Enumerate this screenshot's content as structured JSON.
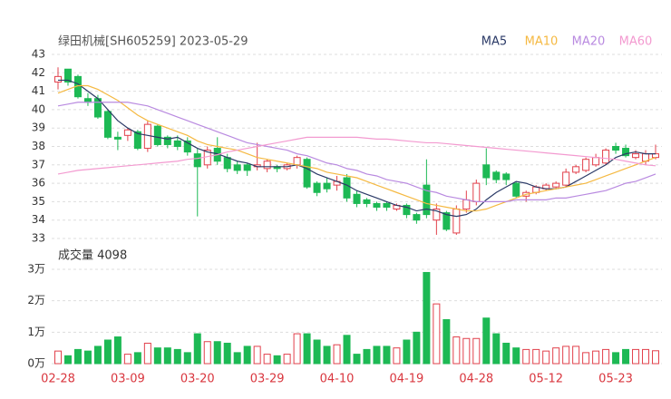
{
  "chart_data": [
    {
      "type": "candlestick",
      "title": "绿田机械[SH605259] 2023-05-29",
      "categories": [
        "02-28",
        null,
        null,
        null,
        null,
        null,
        null,
        "03-09",
        null,
        null,
        null,
        null,
        null,
        null,
        "03-20",
        null,
        null,
        null,
        null,
        null,
        null,
        "03-29",
        null,
        null,
        null,
        null,
        null,
        null,
        "04-10",
        null,
        null,
        null,
        null,
        null,
        null,
        "04-19",
        null,
        null,
        null,
        null,
        null,
        null,
        "04-28",
        null,
        null,
        null,
        null,
        null,
        null,
        "05-12",
        null,
        null,
        null,
        null,
        null,
        null,
        "05-23",
        null,
        null,
        null,
        null
      ],
      "open": [
        41.5,
        42.2,
        41.8,
        40.6,
        40.6,
        39.9,
        38.5,
        38.6,
        38.8,
        37.9,
        39.1,
        38.5,
        38.3,
        38.3,
        37.6,
        37.0,
        37.9,
        37.4,
        37.0,
        37.0,
        36.9,
        36.8,
        36.9,
        36.8,
        37.0,
        37.3,
        36.0,
        36.0,
        35.9,
        36.3,
        35.4,
        35.1,
        34.9,
        34.9,
        34.6,
        34.8,
        34.3,
        35.9,
        34.0,
        34.4,
        33.3,
        34.6,
        35.0,
        37.0,
        36.6,
        36.5,
        36.0,
        35.3,
        35.5,
        35.7,
        35.8,
        35.9,
        36.6,
        36.7,
        37.0,
        37.1,
        38.0,
        37.9,
        37.4,
        37.2,
        37.4
      ],
      "high": [
        42.3,
        42.2,
        41.9,
        40.9,
        40.8,
        40.0,
        38.8,
        39.0,
        38.9,
        39.4,
        39.2,
        38.6,
        38.6,
        38.5,
        37.9,
        38.0,
        38.5,
        37.6,
        37.2,
        37.1,
        38.2,
        37.3,
        37.0,
        37.1,
        37.5,
        37.4,
        36.1,
        36.3,
        36.4,
        36.5,
        35.6,
        35.2,
        35.0,
        35.0,
        34.9,
        34.9,
        34.4,
        37.3,
        34.9,
        34.5,
        34.8,
        35.6,
        36.2,
        37.9,
        36.7,
        36.6,
        36.1,
        35.6,
        35.9,
        36.0,
        36.1,
        36.8,
        37.0,
        37.4,
        37.6,
        37.9,
        38.2,
        38.1,
        37.8,
        37.8,
        38.1
      ],
      "low": [
        41.1,
        41.3,
        40.6,
        40.2,
        39.5,
        38.4,
        37.8,
        38.3,
        37.8,
        37.7,
        38.0,
        37.9,
        37.8,
        37.5,
        34.2,
        36.8,
        37.0,
        36.6,
        36.5,
        36.4,
        36.7,
        36.6,
        36.6,
        36.7,
        36.8,
        35.7,
        35.3,
        35.5,
        35.6,
        35.0,
        34.7,
        34.7,
        34.5,
        34.5,
        34.5,
        34.1,
        33.8,
        34.1,
        33.2,
        33.4,
        33.2,
        34.4,
        34.8,
        35.9,
        36.0,
        35.9,
        35.2,
        35.0,
        35.4,
        35.6,
        35.7,
        35.8,
        36.5,
        36.6,
        36.9,
        37.0,
        37.6,
        37.4,
        37.3,
        37.0,
        37.3
      ],
      "close": [
        41.8,
        41.5,
        40.7,
        40.4,
        39.6,
        38.5,
        38.4,
        38.9,
        37.9,
        39.2,
        38.1,
        38.1,
        38.0,
        37.7,
        36.9,
        37.8,
        37.2,
        36.8,
        36.7,
        36.7,
        37.0,
        37.2,
        36.8,
        37.0,
        37.4,
        35.8,
        35.5,
        35.7,
        36.1,
        35.2,
        34.9,
        34.9,
        34.7,
        34.7,
        34.8,
        34.3,
        34.0,
        34.3,
        34.6,
        33.5,
        34.6,
        35.1,
        36.0,
        36.3,
        36.2,
        36.2,
        35.3,
        35.5,
        35.8,
        35.9,
        36.0,
        36.6,
        36.9,
        37.3,
        37.4,
        37.8,
        37.8,
        37.5,
        37.6,
        37.6,
        37.6
      ],
      "series": [
        {
          "name": "MA5",
          "color": "#2b3a67",
          "values": [
            41.6,
            41.6,
            41.4,
            41.0,
            40.6,
            40.0,
            39.4,
            39.0,
            38.7,
            38.6,
            38.5,
            38.4,
            38.5,
            38.2,
            37.9,
            37.7,
            37.6,
            37.4,
            37.2,
            37.1,
            36.9,
            36.9,
            36.9,
            36.9,
            37.0,
            36.8,
            36.5,
            36.3,
            36.1,
            35.9,
            35.6,
            35.4,
            35.2,
            35.0,
            34.8,
            34.7,
            34.5,
            34.6,
            34.5,
            34.3,
            34.2,
            34.3,
            34.6,
            35.1,
            35.5,
            35.8,
            36.1,
            36.0,
            35.8,
            35.7,
            35.7,
            35.8,
            36.1,
            36.4,
            36.7,
            37.0,
            37.4,
            37.6,
            37.7,
            37.6,
            37.6
          ]
        },
        {
          "name": "MA10",
          "color": "#f5b942",
          "values": [
            40.9,
            41.1,
            41.3,
            41.3,
            41.1,
            40.8,
            40.5,
            40.1,
            39.7,
            39.4,
            39.2,
            39.0,
            38.8,
            38.6,
            38.3,
            38.1,
            38.0,
            37.9,
            37.8,
            37.6,
            37.4,
            37.3,
            37.2,
            37.1,
            37.0,
            36.9,
            36.8,
            36.6,
            36.5,
            36.4,
            36.3,
            36.1,
            35.9,
            35.7,
            35.5,
            35.3,
            35.1,
            34.9,
            34.8,
            34.7,
            34.6,
            34.5,
            34.5,
            34.6,
            34.8,
            35.0,
            35.2,
            35.4,
            35.5,
            35.6,
            35.7,
            35.8,
            35.9,
            36.0,
            36.2,
            36.4,
            36.6,
            36.8,
            37.0,
            37.2,
            37.4
          ]
        },
        {
          "name": "MA20",
          "color": "#b98ae0",
          "values": [
            40.2,
            40.3,
            40.4,
            40.4,
            40.4,
            40.4,
            40.4,
            40.4,
            40.3,
            40.2,
            40.0,
            39.8,
            39.6,
            39.4,
            39.2,
            39.0,
            38.8,
            38.6,
            38.4,
            38.2,
            38.1,
            38.0,
            37.9,
            37.8,
            37.6,
            37.5,
            37.3,
            37.1,
            37.0,
            36.8,
            36.7,
            36.5,
            36.4,
            36.2,
            36.1,
            36.0,
            35.8,
            35.6,
            35.5,
            35.3,
            35.2,
            35.1,
            35.0,
            35.0,
            35.0,
            35.0,
            35.1,
            35.1,
            35.1,
            35.1,
            35.2,
            35.2,
            35.3,
            35.4,
            35.5,
            35.6,
            35.8,
            36.0,
            36.1,
            36.3,
            36.5
          ]
        },
        {
          "name": "MA60",
          "color": "#f39ad0",
          "values": [
            36.5,
            36.6,
            36.7,
            36.75,
            36.8,
            36.85,
            36.9,
            36.95,
            37.0,
            37.05,
            37.1,
            37.15,
            37.2,
            37.3,
            37.35,
            37.45,
            37.55,
            37.7,
            37.8,
            37.9,
            38.0,
            38.1,
            38.2,
            38.3,
            38.4,
            38.5,
            38.5,
            38.5,
            38.5,
            38.5,
            38.5,
            38.45,
            38.4,
            38.4,
            38.35,
            38.3,
            38.25,
            38.2,
            38.2,
            38.15,
            38.1,
            38.05,
            38.0,
            37.95,
            37.9,
            37.85,
            37.8,
            37.75,
            37.7,
            37.65,
            37.6,
            37.55,
            37.5,
            37.45,
            37.4,
            37.35,
            37.3,
            37.2,
            37.1,
            37.0,
            36.95
          ]
        }
      ],
      "ylim": [
        33,
        43
      ],
      "yticks": [
        33,
        34,
        35,
        36,
        37,
        38,
        39,
        40,
        41,
        42,
        43
      ],
      "grid": true,
      "up_color": "#e2404b",
      "down_color": "#1db954"
    },
    {
      "type": "bar",
      "title": "成交量 4098",
      "values": [
        0.4,
        0.25,
        0.45,
        0.4,
        0.55,
        0.75,
        0.85,
        0.3,
        0.35,
        0.65,
        0.5,
        0.5,
        0.45,
        0.35,
        0.95,
        0.7,
        0.7,
        0.65,
        0.35,
        0.55,
        0.55,
        0.3,
        0.25,
        0.3,
        0.95,
        0.95,
        0.75,
        0.55,
        0.6,
        0.9,
        0.3,
        0.45,
        0.55,
        0.55,
        0.5,
        0.75,
        1.0,
        2.9,
        1.9,
        1.4,
        0.85,
        0.8,
        0.8,
        1.45,
        0.95,
        0.65,
        0.5,
        0.45,
        0.45,
        0.4,
        0.5,
        0.55,
        0.55,
        0.35,
        0.4,
        0.45,
        0.35,
        0.45,
        0.45,
        0.45,
        0.4098
      ],
      "ylim": [
        0,
        3
      ],
      "yticks": [
        {
          "value": 0,
          "label": "0万"
        },
        {
          "value": 1,
          "label": "1万"
        },
        {
          "value": 2,
          "label": "2万"
        },
        {
          "value": 3,
          "label": "3万"
        }
      ],
      "grid": true
    }
  ]
}
